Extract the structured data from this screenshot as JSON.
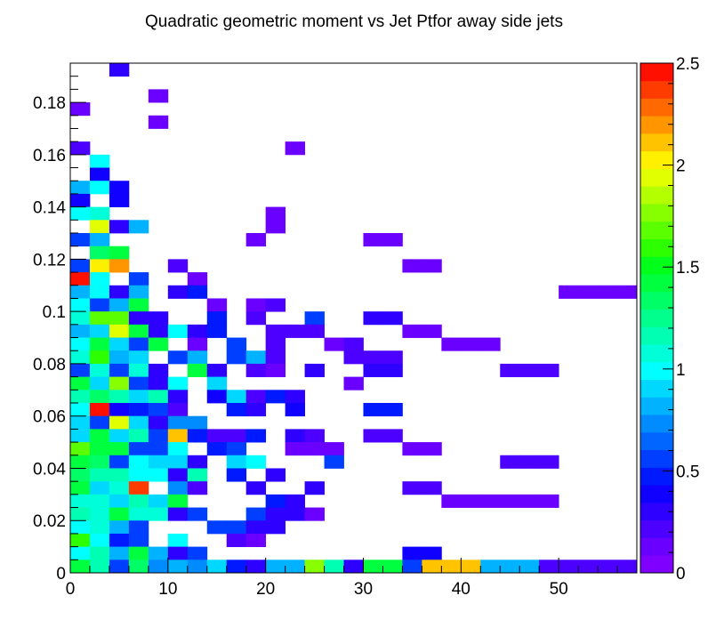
{
  "chart_data": {
    "type": "heatmap",
    "title": "Quadratic geometric moment vs Jet Ptfor away side jets",
    "xlabel": "",
    "ylabel": "",
    "xlim": [
      0,
      58
    ],
    "ylim": [
      0,
      0.195
    ],
    "x_bin_width": 2,
    "y_bin_width": 0.005,
    "x_ticks": [
      "0",
      "10",
      "20",
      "30",
      "40",
      "50"
    ],
    "y_ticks": [
      "0",
      "0.02",
      "0.04",
      "0.06",
      "0.08",
      "0.1",
      "0.12",
      "0.14",
      "0.16",
      "0.18"
    ],
    "z_range": [
      0,
      2.5
    ],
    "z_ticks": [
      "0",
      "0.5",
      "1",
      "1.5",
      "2",
      "2.5"
    ],
    "palette": [
      "#7f00ff",
      "#6a00ff",
      "#4c00ff",
      "#2d00ff",
      "#0f00ff",
      "#0019ff",
      "#003fff",
      "#0066ff",
      "#008cff",
      "#00b2ff",
      "#00d8ff",
      "#00ffff",
      "#00ffd8",
      "#00ffb2",
      "#00ff8c",
      "#00ff66",
      "#00ff3f",
      "#00ff19",
      "#2dff00",
      "#5aff00",
      "#87ff00",
      "#b4ff00",
      "#e1ff00",
      "#fff000",
      "#ffc300",
      "#ff9600",
      "#ff6900",
      "#ff3c00",
      "#ff0f00"
    ],
    "cells": [
      [
        2,
        0.1925,
        0.3
      ],
      [
        4,
        0.1825,
        0.1
      ],
      [
        0,
        0.1775,
        0.1
      ],
      [
        4,
        0.1725,
        0.1
      ],
      [
        0,
        0.1625,
        0.2
      ],
      [
        11,
        0.1625,
        0.1
      ],
      [
        1,
        0.1575,
        1.0
      ],
      [
        1,
        0.1525,
        0.4
      ],
      [
        0,
        0.1475,
        0.8
      ],
      [
        1,
        0.1475,
        1.0
      ],
      [
        2,
        0.1475,
        0.4
      ],
      [
        0,
        0.1425,
        0.4
      ],
      [
        2,
        0.1425,
        0.4
      ],
      [
        0,
        0.1375,
        1.0
      ],
      [
        1,
        0.1375,
        1.1
      ],
      [
        10,
        0.1375,
        0.1
      ],
      [
        1,
        0.1325,
        1.9
      ],
      [
        2,
        0.1325,
        0.3
      ],
      [
        3,
        0.1325,
        0.8
      ],
      [
        10,
        0.1325,
        0.1
      ],
      [
        0,
        0.1275,
        0.6
      ],
      [
        1,
        0.1275,
        0.8
      ],
      [
        9,
        0.1275,
        0.1
      ],
      [
        15,
        0.1275,
        0.1
      ],
      [
        16,
        0.1275,
        0.1
      ],
      [
        1,
        0.1225,
        1.3
      ],
      [
        2,
        0.1225,
        1.4
      ],
      [
        0,
        0.1175,
        0.6
      ],
      [
        1,
        0.1175,
        2.0
      ],
      [
        2,
        0.1175,
        2.2
      ],
      [
        5,
        0.1175,
        0.2
      ],
      [
        17,
        0.1175,
        0.1
      ],
      [
        18,
        0.1175,
        0.1
      ],
      [
        0,
        0.1125,
        2.5
      ],
      [
        1,
        0.1125,
        1.0
      ],
      [
        3,
        0.1125,
        0.6
      ],
      [
        6,
        0.1125,
        0.1
      ],
      [
        0,
        0.1075,
        0.8
      ],
      [
        1,
        0.1075,
        1.0
      ],
      [
        2,
        0.1075,
        0.3
      ],
      [
        3,
        0.1075,
        0.8
      ],
      [
        5,
        0.1075,
        0.3
      ],
      [
        6,
        0.1075,
        0.5
      ],
      [
        25,
        0.1075,
        0.1
      ],
      [
        26,
        0.1075,
        0.1
      ],
      [
        27,
        0.1075,
        0.1
      ],
      [
        28,
        0.1075,
        0.1
      ],
      [
        0,
        0.1025,
        1.0
      ],
      [
        1,
        0.1025,
        0.6
      ],
      [
        2,
        0.1025,
        0.8
      ],
      [
        3,
        0.1025,
        1.4
      ],
      [
        7,
        0.1025,
        0.1
      ],
      [
        9,
        0.1025,
        0.1
      ],
      [
        10,
        0.1025,
        0.2
      ],
      [
        0,
        0.0975,
        1.1
      ],
      [
        1,
        0.0975,
        1.7
      ],
      [
        2,
        0.0975,
        1.7
      ],
      [
        3,
        0.0975,
        0.3
      ],
      [
        4,
        0.0975,
        0.3
      ],
      [
        7,
        0.0975,
        0.5
      ],
      [
        9,
        0.0975,
        0.2
      ],
      [
        12,
        0.0975,
        0.6
      ],
      [
        15,
        0.0975,
        0.3
      ],
      [
        16,
        0.0975,
        0.3
      ],
      [
        0,
        0.0925,
        0.8
      ],
      [
        1,
        0.0925,
        0.9
      ],
      [
        2,
        0.0925,
        1.9
      ],
      [
        3,
        0.0925,
        1.4
      ],
      [
        4,
        0.0925,
        0.3
      ],
      [
        5,
        0.0925,
        1.0
      ],
      [
        6,
        0.0925,
        0.3
      ],
      [
        7,
        0.0925,
        0.5
      ],
      [
        10,
        0.0925,
        0.2
      ],
      [
        11,
        0.0925,
        0.2
      ],
      [
        12,
        0.0925,
        0.2
      ],
      [
        17,
        0.0925,
        0.1
      ],
      [
        18,
        0.0925,
        0.1
      ],
      [
        0,
        0.0875,
        1.0
      ],
      [
        1,
        0.0875,
        1.4
      ],
      [
        2,
        0.0875,
        0.9
      ],
      [
        3,
        0.0875,
        0.6
      ],
      [
        4,
        0.0875,
        1.4
      ],
      [
        6,
        0.0875,
        0.1
      ],
      [
        8,
        0.0875,
        0.6
      ],
      [
        10,
        0.0875,
        0.2
      ],
      [
        13,
        0.0875,
        0.1
      ],
      [
        14,
        0.0875,
        0.2
      ],
      [
        19,
        0.0875,
        0.1
      ],
      [
        20,
        0.0875,
        0.1
      ],
      [
        21,
        0.0875,
        0.1
      ],
      [
        0,
        0.0825,
        1.1
      ],
      [
        1,
        0.0825,
        1.6
      ],
      [
        2,
        0.0825,
        0.8
      ],
      [
        3,
        0.0825,
        0.9
      ],
      [
        5,
        0.0825,
        0.6
      ],
      [
        6,
        0.0825,
        0.8
      ],
      [
        8,
        0.0825,
        0.6
      ],
      [
        9,
        0.0825,
        0.8
      ],
      [
        10,
        0.0825,
        0.2
      ],
      [
        14,
        0.0825,
        0.2
      ],
      [
        15,
        0.0825,
        0.2
      ],
      [
        16,
        0.0825,
        0.2
      ],
      [
        0,
        0.0775,
        0.6
      ],
      [
        1,
        0.0775,
        1.1
      ],
      [
        2,
        0.0775,
        0.6
      ],
      [
        3,
        0.0775,
        1.1
      ],
      [
        4,
        0.0775,
        0.3
      ],
      [
        6,
        0.0775,
        1.4
      ],
      [
        7,
        0.0775,
        0.3
      ],
      [
        9,
        0.0775,
        0.2
      ],
      [
        10,
        0.0775,
        0.1
      ],
      [
        12,
        0.0775,
        0.3
      ],
      [
        15,
        0.0775,
        0.3
      ],
      [
        16,
        0.0775,
        0.3
      ],
      [
        22,
        0.0775,
        0.2
      ],
      [
        23,
        0.0775,
        0.2
      ],
      [
        24,
        0.0775,
        0.2
      ],
      [
        0,
        0.0725,
        1.4
      ],
      [
        1,
        0.0725,
        0.9
      ],
      [
        2,
        0.0725,
        1.8
      ],
      [
        3,
        0.0725,
        0.6
      ],
      [
        4,
        0.0725,
        0.3
      ],
      [
        5,
        0.0725,
        1.0
      ],
      [
        7,
        0.0725,
        0.9
      ],
      [
        14,
        0.0725,
        0.1
      ],
      [
        0,
        0.0675,
        1.2
      ],
      [
        1,
        0.0675,
        1.3
      ],
      [
        2,
        0.0675,
        1.2
      ],
      [
        3,
        0.0675,
        0.9
      ],
      [
        4,
        0.0675,
        1.2
      ],
      [
        5,
        0.0675,
        0.3
      ],
      [
        7,
        0.0675,
        0.4
      ],
      [
        8,
        0.0675,
        0.9
      ],
      [
        9,
        0.0675,
        0.2
      ],
      [
        10,
        0.0675,
        0.5
      ],
      [
        11,
        0.0675,
        0.3
      ],
      [
        0,
        0.0625,
        1.0
      ],
      [
        1,
        0.0625,
        2.5
      ],
      [
        2,
        0.0625,
        0.4
      ],
      [
        3,
        0.0625,
        0.5
      ],
      [
        4,
        0.0625,
        0.6
      ],
      [
        5,
        0.0625,
        0.2
      ],
      [
        8,
        0.0625,
        0.5
      ],
      [
        9,
        0.0625,
        0.3
      ],
      [
        11,
        0.0625,
        0.4
      ],
      [
        15,
        0.0625,
        0.5
      ],
      [
        16,
        0.0625,
        0.5
      ],
      [
        0,
        0.0575,
        0.9
      ],
      [
        1,
        0.0575,
        0.6
      ],
      [
        2,
        0.0575,
        1.9
      ],
      [
        3,
        0.0575,
        0.9
      ],
      [
        4,
        0.0575,
        0.3
      ],
      [
        5,
        0.0575,
        0.7
      ],
      [
        6,
        0.0575,
        0.7
      ],
      [
        0,
        0.0525,
        0.9
      ],
      [
        1,
        0.0525,
        1.4
      ],
      [
        2,
        0.0525,
        0.9
      ],
      [
        3,
        0.0525,
        1.2
      ],
      [
        4,
        0.0525,
        0.6
      ],
      [
        5,
        0.0525,
        2.1
      ],
      [
        6,
        0.0525,
        0.5
      ],
      [
        7,
        0.0525,
        0.2
      ],
      [
        8,
        0.0525,
        0.2
      ],
      [
        9,
        0.0525,
        0.5
      ],
      [
        11,
        0.0525,
        0.3
      ],
      [
        12,
        0.0525,
        0.2
      ],
      [
        15,
        0.0525,
        0.2
      ],
      [
        16,
        0.0525,
        0.2
      ],
      [
        0,
        0.0475,
        1.7
      ],
      [
        1,
        0.0475,
        1.4
      ],
      [
        2,
        0.0475,
        1.4
      ],
      [
        3,
        0.0475,
        0.6
      ],
      [
        4,
        0.0475,
        0.6
      ],
      [
        5,
        0.0475,
        1.0
      ],
      [
        7,
        0.0475,
        0.5
      ],
      [
        8,
        0.0475,
        0.6
      ],
      [
        11,
        0.0475,
        0.1
      ],
      [
        12,
        0.0475,
        0.1
      ],
      [
        13,
        0.0475,
        0.1
      ],
      [
        17,
        0.0475,
        0.1
      ],
      [
        18,
        0.0475,
        0.1
      ],
      [
        0,
        0.0425,
        1.4
      ],
      [
        1,
        0.0425,
        1.3
      ],
      [
        2,
        0.0425,
        0.6
      ],
      [
        3,
        0.0425,
        1.0
      ],
      [
        4,
        0.0425,
        0.9
      ],
      [
        5,
        0.0425,
        0.9
      ],
      [
        6,
        0.0425,
        0.3
      ],
      [
        8,
        0.0425,
        0.9
      ],
      [
        9,
        0.0425,
        1.0
      ],
      [
        13,
        0.0425,
        0.6
      ],
      [
        22,
        0.0425,
        0.2
      ],
      [
        23,
        0.0425,
        0.2
      ],
      [
        24,
        0.0425,
        0.2
      ],
      [
        0,
        0.0375,
        1.3
      ],
      [
        1,
        0.0375,
        1.2
      ],
      [
        2,
        0.0375,
        1.2
      ],
      [
        3,
        0.0375,
        1.0
      ],
      [
        4,
        0.0375,
        1.0
      ],
      [
        5,
        0.0375,
        0.3
      ],
      [
        6,
        0.0375,
        1.2
      ],
      [
        8,
        0.0375,
        0.5
      ],
      [
        10,
        0.0375,
        0.3
      ],
      [
        0,
        0.0325,
        1.4
      ],
      [
        1,
        0.0325,
        0.9
      ],
      [
        2,
        0.0325,
        1.1
      ],
      [
        3,
        0.0325,
        2.4
      ],
      [
        5,
        0.0325,
        0.7
      ],
      [
        6,
        0.0325,
        0.2
      ],
      [
        9,
        0.0325,
        0.3
      ],
      [
        12,
        0.0325,
        0.3
      ],
      [
        17,
        0.0325,
        0.2
      ],
      [
        18,
        0.0325,
        0.2
      ],
      [
        0,
        0.0275,
        1.1
      ],
      [
        1,
        0.0275,
        1.1
      ],
      [
        2,
        0.0275,
        0.9
      ],
      [
        3,
        0.0275,
        1.2
      ],
      [
        4,
        0.0275,
        0.9
      ],
      [
        5,
        0.0275,
        1.4
      ],
      [
        10,
        0.0275,
        0.5
      ],
      [
        11,
        0.0275,
        0.3
      ],
      [
        19,
        0.0275,
        0.1
      ],
      [
        20,
        0.0275,
        0.1
      ],
      [
        21,
        0.0275,
        0.1
      ],
      [
        22,
        0.0275,
        0.1
      ],
      [
        23,
        0.0275,
        0.1
      ],
      [
        24,
        0.0275,
        0.1
      ],
      [
        0,
        0.0225,
        1.2
      ],
      [
        1,
        0.0225,
        1.1
      ],
      [
        2,
        0.0225,
        1.4
      ],
      [
        3,
        0.0225,
        1.1
      ],
      [
        4,
        0.0225,
        1.1
      ],
      [
        5,
        0.0225,
        0.3
      ],
      [
        6,
        0.0225,
        0.6
      ],
      [
        9,
        0.0225,
        0.6
      ],
      [
        10,
        0.0225,
        0.3
      ],
      [
        11,
        0.0225,
        0.3
      ],
      [
        12,
        0.0225,
        0.1
      ],
      [
        0,
        0.0175,
        1.0
      ],
      [
        1,
        0.0175,
        1.1
      ],
      [
        2,
        0.0175,
        0.8
      ],
      [
        3,
        0.0175,
        0.6
      ],
      [
        7,
        0.0175,
        0.6
      ],
      [
        8,
        0.0175,
        0.6
      ],
      [
        9,
        0.0175,
        0.3
      ],
      [
        10,
        0.0175,
        0.3
      ],
      [
        0,
        0.0125,
        1.6
      ],
      [
        1,
        0.0125,
        1.0
      ],
      [
        2,
        0.0125,
        0.5
      ],
      [
        3,
        0.0125,
        0.6
      ],
      [
        5,
        0.0125,
        1.0
      ],
      [
        8,
        0.0125,
        0.2
      ],
      [
        9,
        0.0125,
        0.1
      ],
      [
        0,
        0.0075,
        1.0
      ],
      [
        1,
        0.0075,
        1.2
      ],
      [
        2,
        0.0075,
        0.8
      ],
      [
        3,
        0.0075,
        1.4
      ],
      [
        4,
        0.0075,
        0.8
      ],
      [
        5,
        0.0075,
        0.3
      ],
      [
        6,
        0.0075,
        0.6
      ],
      [
        17,
        0.0075,
        0.4
      ],
      [
        18,
        0.0075,
        0.4
      ],
      [
        0,
        0.0025,
        1.4
      ],
      [
        1,
        0.0025,
        1.2
      ],
      [
        2,
        0.0025,
        0.6
      ],
      [
        3,
        0.0025,
        1.3
      ],
      [
        4,
        0.0025,
        0.7
      ],
      [
        5,
        0.0025,
        0.8
      ],
      [
        6,
        0.0025,
        0.7
      ],
      [
        7,
        0.0025,
        0.9
      ],
      [
        8,
        0.0025,
        0.5
      ],
      [
        9,
        0.0025,
        0.3
      ],
      [
        10,
        0.0025,
        0.8
      ],
      [
        11,
        0.0025,
        0.8
      ],
      [
        12,
        0.0025,
        1.8
      ],
      [
        13,
        0.0025,
        1.2
      ],
      [
        14,
        0.0025,
        0.3
      ],
      [
        15,
        0.0025,
        1.4
      ],
      [
        16,
        0.0025,
        1.4
      ],
      [
        17,
        0.0025,
        0.6
      ],
      [
        18,
        0.0025,
        2.1
      ],
      [
        19,
        0.0025,
        2.1
      ],
      [
        20,
        0.0025,
        2.1
      ],
      [
        21,
        0.0025,
        0.8
      ],
      [
        22,
        0.0025,
        0.8
      ],
      [
        23,
        0.0025,
        0.8
      ],
      [
        24,
        0.0025,
        0.2
      ],
      [
        25,
        0.0025,
        0.2
      ],
      [
        26,
        0.0025,
        0.2
      ],
      [
        27,
        0.0025,
        0.2
      ],
      [
        28,
        0.0025,
        0.2
      ]
    ]
  }
}
